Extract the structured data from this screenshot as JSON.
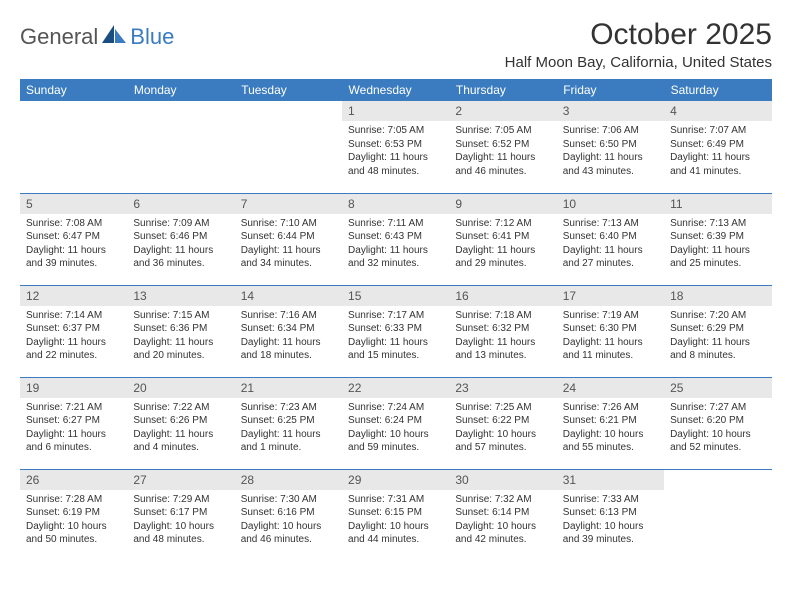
{
  "logo": {
    "text1": "General",
    "text2": "Blue"
  },
  "title": "October 2025",
  "location": "Half Moon Bay, California, United States",
  "colors": {
    "brand": "#3a7cbf",
    "daynum_bg": "#e8e8e8",
    "text": "#333333"
  },
  "day_headers": [
    "Sunday",
    "Monday",
    "Tuesday",
    "Wednesday",
    "Thursday",
    "Friday",
    "Saturday"
  ],
  "weeks": [
    [
      null,
      null,
      null,
      {
        "n": "1",
        "sr": "7:05 AM",
        "ss": "6:53 PM",
        "dl": "11 hours and 48 minutes."
      },
      {
        "n": "2",
        "sr": "7:05 AM",
        "ss": "6:52 PM",
        "dl": "11 hours and 46 minutes."
      },
      {
        "n": "3",
        "sr": "7:06 AM",
        "ss": "6:50 PM",
        "dl": "11 hours and 43 minutes."
      },
      {
        "n": "4",
        "sr": "7:07 AM",
        "ss": "6:49 PM",
        "dl": "11 hours and 41 minutes."
      }
    ],
    [
      {
        "n": "5",
        "sr": "7:08 AM",
        "ss": "6:47 PM",
        "dl": "11 hours and 39 minutes."
      },
      {
        "n": "6",
        "sr": "7:09 AM",
        "ss": "6:46 PM",
        "dl": "11 hours and 36 minutes."
      },
      {
        "n": "7",
        "sr": "7:10 AM",
        "ss": "6:44 PM",
        "dl": "11 hours and 34 minutes."
      },
      {
        "n": "8",
        "sr": "7:11 AM",
        "ss": "6:43 PM",
        "dl": "11 hours and 32 minutes."
      },
      {
        "n": "9",
        "sr": "7:12 AM",
        "ss": "6:41 PM",
        "dl": "11 hours and 29 minutes."
      },
      {
        "n": "10",
        "sr": "7:13 AM",
        "ss": "6:40 PM",
        "dl": "11 hours and 27 minutes."
      },
      {
        "n": "11",
        "sr": "7:13 AM",
        "ss": "6:39 PM",
        "dl": "11 hours and 25 minutes."
      }
    ],
    [
      {
        "n": "12",
        "sr": "7:14 AM",
        "ss": "6:37 PM",
        "dl": "11 hours and 22 minutes."
      },
      {
        "n": "13",
        "sr": "7:15 AM",
        "ss": "6:36 PM",
        "dl": "11 hours and 20 minutes."
      },
      {
        "n": "14",
        "sr": "7:16 AM",
        "ss": "6:34 PM",
        "dl": "11 hours and 18 minutes."
      },
      {
        "n": "15",
        "sr": "7:17 AM",
        "ss": "6:33 PM",
        "dl": "11 hours and 15 minutes."
      },
      {
        "n": "16",
        "sr": "7:18 AM",
        "ss": "6:32 PM",
        "dl": "11 hours and 13 minutes."
      },
      {
        "n": "17",
        "sr": "7:19 AM",
        "ss": "6:30 PM",
        "dl": "11 hours and 11 minutes."
      },
      {
        "n": "18",
        "sr": "7:20 AM",
        "ss": "6:29 PM",
        "dl": "11 hours and 8 minutes."
      }
    ],
    [
      {
        "n": "19",
        "sr": "7:21 AM",
        "ss": "6:27 PM",
        "dl": "11 hours and 6 minutes."
      },
      {
        "n": "20",
        "sr": "7:22 AM",
        "ss": "6:26 PM",
        "dl": "11 hours and 4 minutes."
      },
      {
        "n": "21",
        "sr": "7:23 AM",
        "ss": "6:25 PM",
        "dl": "11 hours and 1 minute."
      },
      {
        "n": "22",
        "sr": "7:24 AM",
        "ss": "6:24 PM",
        "dl": "10 hours and 59 minutes."
      },
      {
        "n": "23",
        "sr": "7:25 AM",
        "ss": "6:22 PM",
        "dl": "10 hours and 57 minutes."
      },
      {
        "n": "24",
        "sr": "7:26 AM",
        "ss": "6:21 PM",
        "dl": "10 hours and 55 minutes."
      },
      {
        "n": "25",
        "sr": "7:27 AM",
        "ss": "6:20 PM",
        "dl": "10 hours and 52 minutes."
      }
    ],
    [
      {
        "n": "26",
        "sr": "7:28 AM",
        "ss": "6:19 PM",
        "dl": "10 hours and 50 minutes."
      },
      {
        "n": "27",
        "sr": "7:29 AM",
        "ss": "6:17 PM",
        "dl": "10 hours and 48 minutes."
      },
      {
        "n": "28",
        "sr": "7:30 AM",
        "ss": "6:16 PM",
        "dl": "10 hours and 46 minutes."
      },
      {
        "n": "29",
        "sr": "7:31 AM",
        "ss": "6:15 PM",
        "dl": "10 hours and 44 minutes."
      },
      {
        "n": "30",
        "sr": "7:32 AM",
        "ss": "6:14 PM",
        "dl": "10 hours and 42 minutes."
      },
      {
        "n": "31",
        "sr": "7:33 AM",
        "ss": "6:13 PM",
        "dl": "10 hours and 39 minutes."
      },
      null
    ]
  ],
  "labels": {
    "sunrise": "Sunrise:",
    "sunset": "Sunset:",
    "daylight": "Daylight:"
  }
}
